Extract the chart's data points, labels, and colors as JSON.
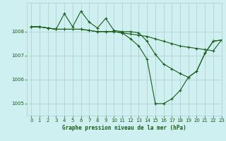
{
  "title": "Graphe pression niveau de la mer (hPa)",
  "background_color": "#cff0f0",
  "grid_color": "#b0cccc",
  "line_color": "#1a5c1a",
  "xlim": [
    -0.5,
    23
  ],
  "ylim": [
    1004.5,
    1009.2
  ],
  "yticks": [
    1005,
    1006,
    1007,
    1008
  ],
  "xticks": [
    0,
    1,
    2,
    3,
    4,
    5,
    6,
    7,
    8,
    9,
    10,
    11,
    12,
    13,
    14,
    15,
    16,
    17,
    18,
    19,
    20,
    21,
    22,
    23
  ],
  "series": [
    {
      "x": [
        0,
        1,
        2,
        3,
        4,
        5,
        6,
        7,
        8,
        9,
        10,
        11,
        12,
        13,
        14,
        15,
        16,
        17,
        18,
        19,
        20,
        21,
        22,
        23
      ],
      "y": [
        1008.2,
        1008.2,
        1008.15,
        1008.1,
        1008.1,
        1008.1,
        1008.1,
        1008.05,
        1008.0,
        1008.0,
        1008.0,
        1007.95,
        1007.9,
        1007.85,
        1007.8,
        1007.7,
        1007.6,
        1007.5,
        1007.4,
        1007.35,
        1007.3,
        1007.25,
        1007.2,
        1007.65
      ]
    },
    {
      "x": [
        0,
        1,
        2,
        3,
        4,
        5,
        6,
        7,
        8,
        9,
        10,
        11,
        12,
        13,
        14,
        15,
        16,
        17,
        18,
        19,
        20,
        21,
        22,
        23
      ],
      "y": [
        1008.2,
        1008.2,
        1008.15,
        1008.1,
        1008.1,
        1008.1,
        1008.1,
        1008.05,
        1008.0,
        1008.0,
        1008.0,
        1007.95,
        1007.7,
        1007.4,
        1006.85,
        1005.0,
        1005.0,
        1005.2,
        1005.55,
        1006.1,
        1006.35,
        1007.1,
        1007.6,
        1007.65
      ]
    },
    {
      "x": [
        0,
        1,
        2,
        3,
        4,
        5,
        6,
        7,
        8,
        9,
        10,
        11,
        12,
        13,
        14,
        15,
        16,
        17,
        18,
        19,
        20,
        21,
        22,
        23
      ],
      "y": [
        1008.2,
        1008.2,
        1008.15,
        1008.1,
        1008.75,
        1008.2,
        1008.85,
        1008.4,
        1008.15,
        1008.55,
        1008.05,
        1008.0,
        1008.0,
        1007.95,
        1007.6,
        1007.05,
        1006.65,
        1006.45,
        1006.25,
        1006.1,
        1006.35,
        1007.1,
        1007.6,
        1007.65
      ]
    }
  ]
}
